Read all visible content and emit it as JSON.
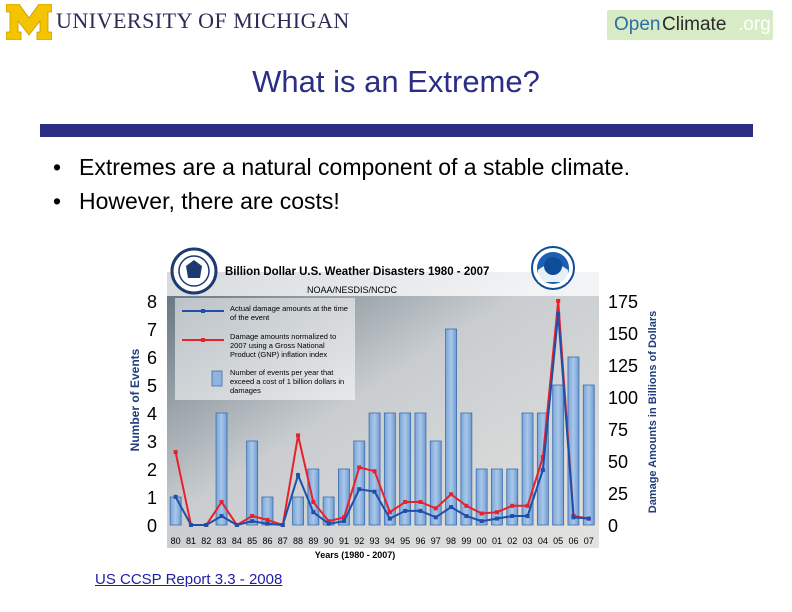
{
  "header": {
    "university": "UNIVERSITY OF MICHIGAN",
    "badge": {
      "open": "Open",
      "climate": "Climate",
      "org": ".org"
    }
  },
  "slide": {
    "title": "What is an Extreme?",
    "bullets": [
      "Extremes are a natural component of a stable climate.",
      "However, there are costs!"
    ],
    "bullet_symbol": "•",
    "source_link": "US CCSP Report 3.3 - 2008"
  },
  "chart_data": {
    "type": "bar",
    "title": "Billion Dollar U.S. Weather Disasters 1980 - 2007",
    "subtitle": "NOAA/NESDIS/NCDC",
    "xlabel": "Years (1980 - 2007)",
    "ylabel_left": "Number of Events",
    "ylabel_right": "Damage Amounts in Billions of Dollars",
    "categories": [
      "80",
      "81",
      "82",
      "83",
      "84",
      "85",
      "86",
      "87",
      "88",
      "89",
      "90",
      "91",
      "92",
      "93",
      "94",
      "95",
      "96",
      "97",
      "98",
      "99",
      "00",
      "01",
      "02",
      "03",
      "04",
      "05",
      "06",
      "07"
    ],
    "ylim_left": [
      0,
      8
    ],
    "ylim_right": [
      0,
      175
    ],
    "left_ticks": [
      "0",
      "1",
      "2",
      "3",
      "4",
      "5",
      "6",
      "7",
      "8"
    ],
    "right_ticks": [
      "0",
      "25",
      "50",
      "75",
      "100",
      "125",
      "150",
      "175"
    ],
    "series": [
      {
        "name": "Number of events per year that exceed a cost of 1 billion dollars in damages",
        "kind": "bar",
        "axis": "left",
        "color": "#8fb4de",
        "values": [
          1,
          0,
          0,
          4,
          0,
          3,
          1,
          0,
          1,
          2,
          1,
          2,
          3,
          4,
          4,
          4,
          4,
          3,
          7,
          4,
          2,
          2,
          2,
          4,
          4,
          5,
          6,
          5
        ]
      },
      {
        "name": "Actual damage amounts at the time of the event",
        "kind": "line",
        "axis": "right",
        "color": "#1f4fa8",
        "values": [
          22,
          0,
          0,
          7,
          0,
          3,
          1,
          0,
          39,
          10,
          1,
          3,
          28,
          26,
          5,
          11,
          11,
          6,
          14,
          7,
          3,
          5,
          7,
          7,
          43,
          165,
          6,
          5
        ]
      },
      {
        "name": "Damage amounts normalized to 2007 using a Gross National Product (GNP) inflation index",
        "kind": "line",
        "axis": "right",
        "color": "#e8212b",
        "values": [
          57,
          0,
          0,
          18,
          0,
          7,
          4,
          0,
          70,
          18,
          3,
          6,
          45,
          42,
          10,
          18,
          18,
          13,
          24,
          15,
          9,
          10,
          15,
          15,
          53,
          175,
          7,
          5
        ]
      }
    ],
    "legend_position": "top-left",
    "colors": {
      "title_blue": "#2b2e84",
      "link_blue": "#1d1da8",
      "badge_green": "#d7ebc4",
      "maize": "#f5c400"
    }
  }
}
